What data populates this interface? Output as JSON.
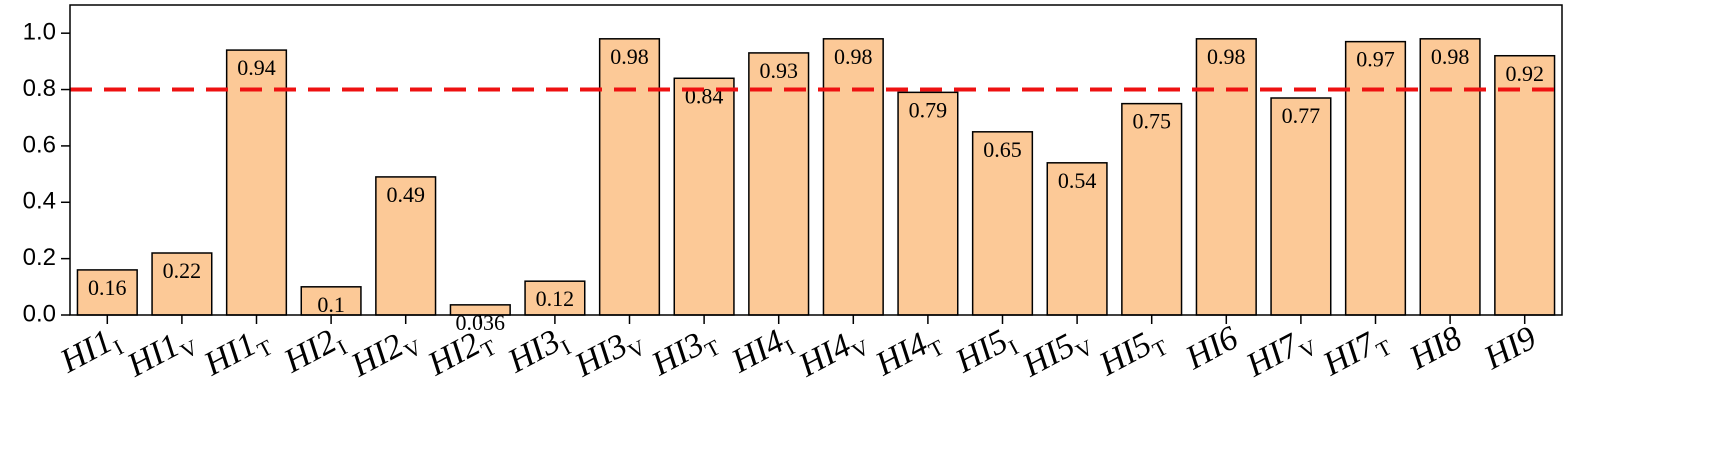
{
  "chart_data": {
    "type": "bar",
    "categories": [
      "HI1",
      "HI1",
      "HI1",
      "HI2",
      "HI2",
      "HI2",
      "HI3",
      "HI3",
      "HI3",
      "HI4",
      "HI4",
      "HI4",
      "HI5",
      "HI5",
      "HI5",
      "HI6",
      "HI7",
      "HI7",
      "HI8",
      "HI9"
    ],
    "category_subscripts": [
      "I",
      "V",
      "T",
      "I",
      "V",
      "T",
      "I",
      "V",
      "T",
      "I",
      "V",
      "T",
      "I",
      "V",
      "T",
      null,
      "V",
      "T",
      null,
      null
    ],
    "values": [
      0.16,
      0.22,
      0.94,
      0.1,
      0.49,
      0.036,
      0.12,
      0.98,
      0.84,
      0.93,
      0.98,
      0.79,
      0.65,
      0.54,
      0.75,
      0.98,
      0.77,
      0.97,
      0.98,
      0.92
    ],
    "color": "#fcc997",
    "ylim": [
      0,
      1.1
    ],
    "yticks": [
      {
        "value": 0,
        "label": "0.0"
      },
      0.2,
      0.4,
      0.6,
      0.8,
      {
        "value": 1,
        "label": "1.0"
      }
    ],
    "reference_line": {
      "value": 0.8,
      "color": "#ee1111"
    }
  }
}
